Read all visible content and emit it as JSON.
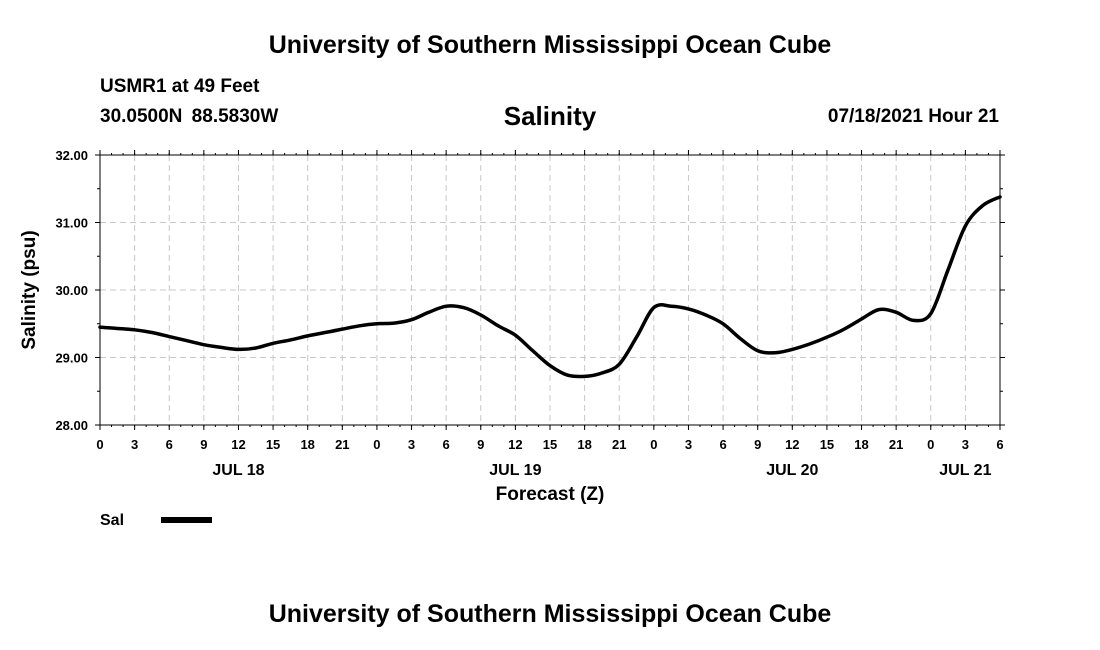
{
  "header": {
    "top_title": "University of Southern Mississippi Ocean Cube",
    "station": "USMR1 at 49 Feet",
    "coordinates": "30.0500N  88.5830W",
    "datetime": "07/18/2021 Hour 21"
  },
  "footer": {
    "bottom_title": "University of Southern Mississippi Ocean Cube"
  },
  "chart_data": {
    "type": "line",
    "title": "Salinity",
    "xlabel": "Forecast (Z)",
    "ylabel": "Salinity (psu)",
    "xlim": [
      0,
      78
    ],
    "ylim": [
      28,
      32
    ],
    "grid": true,
    "line_color": "#000000",
    "grid_color": "#c8c8c8",
    "y_ticks": [
      28,
      29,
      30,
      31,
      32
    ],
    "y_tick_labels": [
      "28.00",
      "29.00",
      "30.00",
      "31.00",
      "32.00"
    ],
    "x_ticks": [
      0,
      3,
      6,
      9,
      12,
      15,
      18,
      21,
      24,
      27,
      30,
      33,
      36,
      39,
      42,
      45,
      48,
      51,
      54,
      57,
      60,
      63,
      66,
      69,
      72,
      75,
      78
    ],
    "x_tick_labels": [
      "0",
      "3",
      "6",
      "9",
      "12",
      "15",
      "18",
      "21",
      "0",
      "3",
      "6",
      "9",
      "12",
      "15",
      "18",
      "21",
      "0",
      "3",
      "6",
      "9",
      "12",
      "15",
      "18",
      "21",
      "0",
      "3",
      "6"
    ],
    "date_labels": [
      {
        "hour": 12,
        "label": "JUL 18"
      },
      {
        "hour": 36,
        "label": "JUL 19"
      },
      {
        "hour": 60,
        "label": "JUL 20"
      },
      {
        "hour": 75,
        "label": "JUL 21"
      }
    ],
    "legend": {
      "label": "Sal",
      "placement": "bottom-left"
    },
    "series": [
      {
        "name": "Sal",
        "x": [
          0,
          1.5,
          3,
          4.5,
          6,
          7.5,
          9,
          10.5,
          12,
          13.5,
          15,
          16.5,
          18,
          19.5,
          21,
          22.5,
          24,
          25.5,
          27,
          28.5,
          30,
          31.5,
          33,
          34.5,
          36,
          37.5,
          39,
          40.5,
          42,
          43.5,
          45,
          46.5,
          48,
          49.5,
          51,
          52.5,
          54,
          55.5,
          57,
          58.5,
          60,
          61.5,
          63,
          64.5,
          66,
          67.5,
          69,
          70.5,
          72,
          73.5,
          75,
          76.5,
          78
        ],
        "values": [
          29.45,
          29.43,
          29.41,
          29.37,
          29.31,
          29.25,
          29.19,
          29.15,
          29.12,
          29.14,
          29.21,
          29.26,
          29.32,
          29.37,
          29.42,
          29.47,
          29.5,
          29.51,
          29.56,
          29.67,
          29.76,
          29.74,
          29.63,
          29.47,
          29.33,
          29.1,
          28.88,
          28.74,
          28.72,
          28.77,
          28.9,
          29.3,
          29.74,
          29.76,
          29.72,
          29.63,
          29.5,
          29.28,
          29.1,
          29.07,
          29.12,
          29.2,
          29.3,
          29.42,
          29.57,
          29.71,
          29.67,
          29.55,
          29.65,
          30.3,
          30.95,
          31.25,
          31.38
        ]
      }
    ]
  }
}
